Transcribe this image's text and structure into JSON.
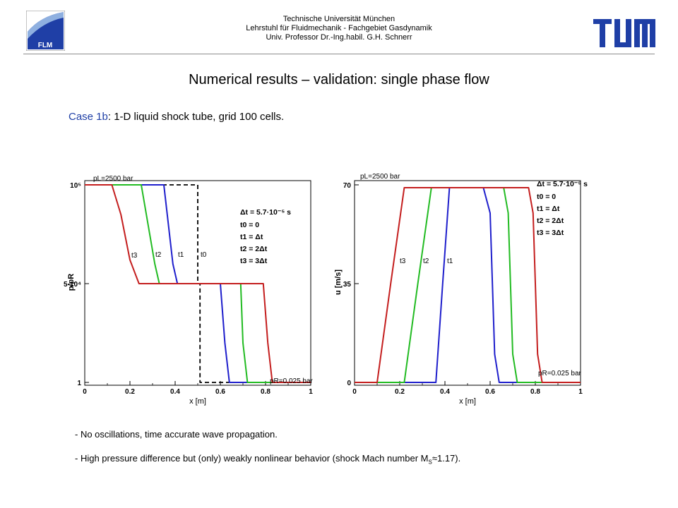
{
  "header": {
    "flm_label": "FLM",
    "line1": "Technische Universität München",
    "line2": "Lehrstuhl für Fluidmechanik - Fachgebiet Gasdynamik",
    "line3": "Univ. Professor Dr.-Ing.habil. G.H. Schnerr"
  },
  "title": "Numerical results – validation: single phase flow",
  "case": {
    "label": "Case 1b",
    "text": ": 1-D liquid shock tube, grid 100 cells."
  },
  "colors": {
    "t0": "#000000",
    "t1": "#1f1fcc",
    "t2": "#22bb22",
    "t3": "#c41e1e",
    "brand": "#1f3fa6"
  },
  "chart_data": [
    {
      "type": "line",
      "xlabel": "x [m]",
      "ylabel": "p/pR",
      "xlim": [
        0,
        1
      ],
      "xticks": [
        "0",
        "0.2",
        "0.4",
        "0.6",
        "0.8",
        "1"
      ],
      "yticks": [
        "10⁵",
        "5·10⁴",
        "1"
      ],
      "ylim": [
        1,
        100000
      ],
      "annotations": {
        "pL": "pL=2500 bar",
        "pR": "pR=0.025 bar",
        "dt": "Δt = 5.7·10⁻⁵ s",
        "t0": "t0 = 0",
        "t1": "t1 = Δt",
        "t2": "t2 = 2Δt",
        "t3": "t3 = 3Δt",
        "curve_labels": [
          "t3",
          "t2",
          "t1",
          "t0"
        ]
      },
      "series": [
        {
          "name": "t0",
          "style": "dashed",
          "x": [
            0,
            0.5,
            0.5,
            0.51,
            0.51,
            1
          ],
          "y": [
            100000,
            100000,
            50000,
            50000,
            1,
            1
          ]
        },
        {
          "name": "t1",
          "x": [
            0,
            0.35,
            0.37,
            0.39,
            0.41,
            0.6,
            0.62,
            0.64,
            1
          ],
          "y": [
            100000,
            100000,
            80000,
            60000,
            50000,
            50000,
            20000,
            1,
            1
          ]
        },
        {
          "name": "t2",
          "x": [
            0,
            0.25,
            0.28,
            0.31,
            0.33,
            0.69,
            0.7,
            0.72,
            1
          ],
          "y": [
            100000,
            100000,
            80000,
            60000,
            50000,
            50000,
            20000,
            1,
            1
          ]
        },
        {
          "name": "t3",
          "x": [
            0,
            0.12,
            0.16,
            0.2,
            0.24,
            0.79,
            0.81,
            0.83,
            1
          ],
          "y": [
            100000,
            100000,
            85000,
            62000,
            50000,
            50000,
            20000,
            1,
            1
          ]
        }
      ]
    },
    {
      "type": "line",
      "xlabel": "x [m]",
      "ylabel": "u [m/s]",
      "xlim": [
        0,
        1
      ],
      "ylim": [
        0,
        70
      ],
      "xticks": [
        "0",
        "0.2",
        "0.4",
        "0.6",
        "0.8",
        "1"
      ],
      "yticks": [
        "70",
        "35",
        "0"
      ],
      "annotations": {
        "pL": "pL=2500 bar",
        "pR": "pR=0.025 bar",
        "dt": "Δt = 5.7·10⁻⁵ s",
        "t0": "t0 = 0",
        "t1": "t1 = Δt",
        "t2": "t2 = 2Δt",
        "t3": "t3 = 3Δt",
        "curve_labels": [
          "t3",
          "t2",
          "t1"
        ]
      },
      "series": [
        {
          "name": "t1",
          "x": [
            0,
            0.36,
            0.39,
            0.42,
            0.57,
            0.6,
            0.62,
            0.64,
            1
          ],
          "y": [
            0,
            0,
            35,
            69,
            69,
            60,
            10,
            0,
            0
          ]
        },
        {
          "name": "t2",
          "x": [
            0,
            0.22,
            0.28,
            0.34,
            0.66,
            0.68,
            0.7,
            0.72,
            1
          ],
          "y": [
            0,
            0,
            35,
            69,
            69,
            60,
            10,
            0,
            0
          ]
        },
        {
          "name": "t3",
          "x": [
            0,
            0.1,
            0.16,
            0.22,
            0.77,
            0.79,
            0.81,
            0.83,
            1
          ],
          "y": [
            0,
            0,
            35,
            69,
            69,
            60,
            10,
            0,
            0
          ]
        }
      ]
    }
  ],
  "notes": {
    "line1": "- No oscillations, time accurate wave propagation.",
    "line2a": "- High pressure difference but (only) weakly nonlinear behavior (shock Mach number M",
    "line2sub": "S",
    "line2b": "≈1.17)."
  }
}
